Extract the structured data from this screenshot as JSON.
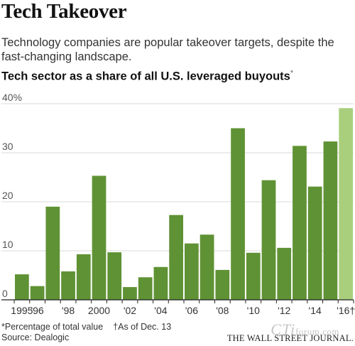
{
  "header": {
    "title": "Tech Takeover",
    "subtitle": "Technology companies are popular takeover targets, despite the fast-changing landscape.",
    "chart_title": "Tech sector as a share of all U.S. leveraged buyouts",
    "chart_title_mark": "*"
  },
  "footer": {
    "note_1": "*Percentage of total value",
    "note_2": "†As of Dec. 13",
    "source": "Source: Dealogic",
    "publisher": "THE WALL STREET JOURNAL."
  },
  "watermark": {
    "logo": "CTi",
    "domain": "forum.com"
  },
  "chart_data": {
    "type": "bar",
    "categories": [
      "1995",
      "1996",
      "1997",
      "1998",
      "1999",
      "2000",
      "2001",
      "2002",
      "2003",
      "2004",
      "2005",
      "2006",
      "2007",
      "2008",
      "2009",
      "2010",
      "2011",
      "2012",
      "2013",
      "2014",
      "2015",
      "2016"
    ],
    "values": [
      5.2,
      2.8,
      19,
      5.8,
      9.3,
      25.3,
      9.7,
      2.6,
      4.6,
      6.7,
      17.3,
      11.5,
      13.3,
      6.1,
      35,
      9.6,
      24.4,
      10.6,
      31.4,
      23.1,
      32.3,
      39.1
    ],
    "ylim": [
      0,
      40
    ],
    "yticks": [
      0,
      10,
      20,
      30,
      40
    ],
    "ytick_labels": [
      "0",
      "10",
      "20",
      "30",
      "40%"
    ],
    "xtick_labels": [
      "1995",
      "'96",
      "'98",
      "2000",
      "'02",
      "'04",
      "'06",
      "'08",
      "'10",
      "'12",
      "'14",
      "'16†"
    ],
    "xtick_indices": [
      0,
      1,
      3,
      5,
      7,
      9,
      11,
      13,
      15,
      17,
      19,
      21
    ],
    "colors": {
      "bar": "#5f9234",
      "highlight": "#a9cf7d",
      "grid": "#d9d9d9",
      "baseline": "#222222",
      "label": "#555555"
    },
    "highlight_index": 21,
    "grid": true
  }
}
